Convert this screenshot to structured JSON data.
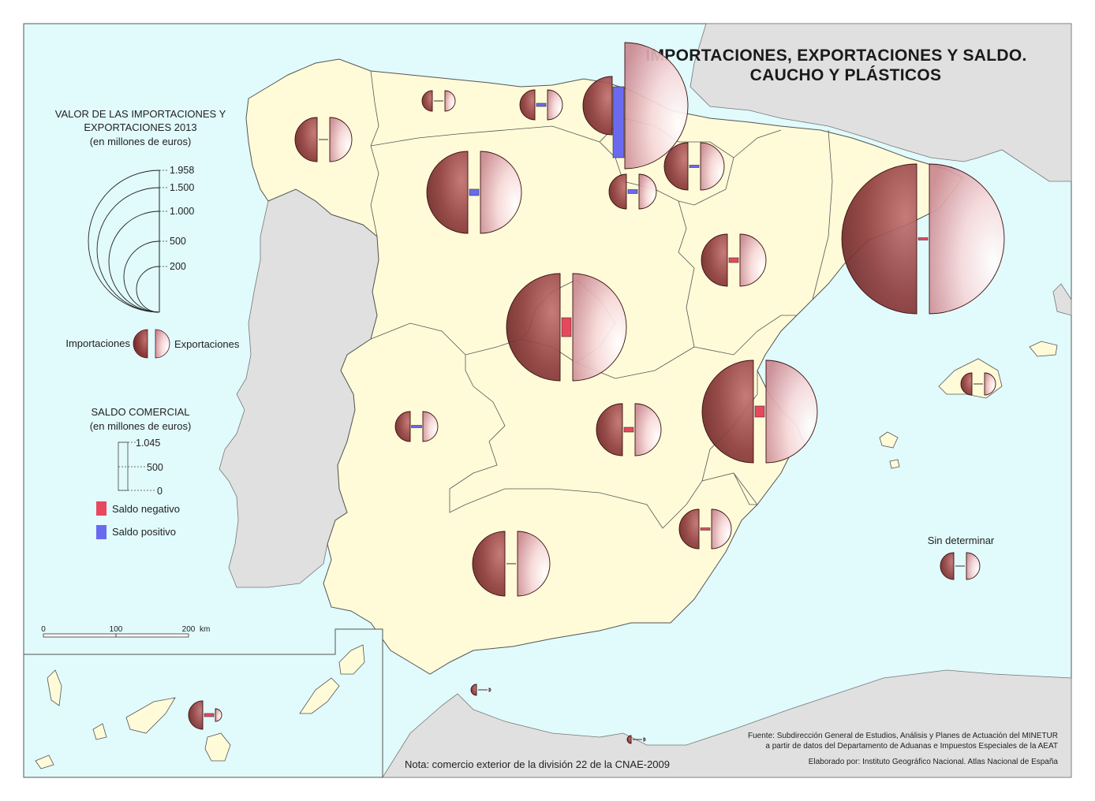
{
  "title": {
    "line1": "IMPORTACIONES, EXPORTACIONES Y SALDO.",
    "line2": "CAUCHO Y PLÁSTICOS"
  },
  "legend_value": {
    "heading1": "VALOR DE LAS IMPORTACIONES Y",
    "heading2": "EXPORTACIONES 2013",
    "heading3": "(en millones de euros)",
    "ticks": [
      "1.958",
      "1.500",
      "1.000",
      "500",
      "200"
    ],
    "import_label": "Importaciones",
    "export_label": "Exportaciones"
  },
  "legend_balance": {
    "heading1": "SALDO COMERCIAL",
    "heading2": "(en millones de euros)",
    "ticks": [
      "1.045",
      "500",
      "0"
    ],
    "negative_label": "Saldo negativo",
    "positive_label": "Saldo positivo"
  },
  "scale_bar": {
    "labels": [
      "0",
      "100",
      "200"
    ],
    "unit": "km"
  },
  "undetermined_label": "Sin determinar",
  "source": {
    "line1": "Fuente: Subdirección General de Estudios, Análisis y Planes de Actuación del MINETUR",
    "line2": "a partir de datos del Departamento de Aduanas e Impuestos Especiales de la AEAT",
    "credit": "Elaborado por: Instituto Geográfico Nacional. Atlas Nacional de España"
  },
  "note": "Nota: comercio exterior de la división 22 de la CNAE-2009",
  "colors": {
    "sea": "#e1fafc",
    "land_spain": "#fffbd8",
    "land_other": "#e0e0e0",
    "import": "#8c3a3a",
    "export": "#f0c4c8",
    "negative": "#e8485e",
    "positive": "#6a6af0"
  }
}
